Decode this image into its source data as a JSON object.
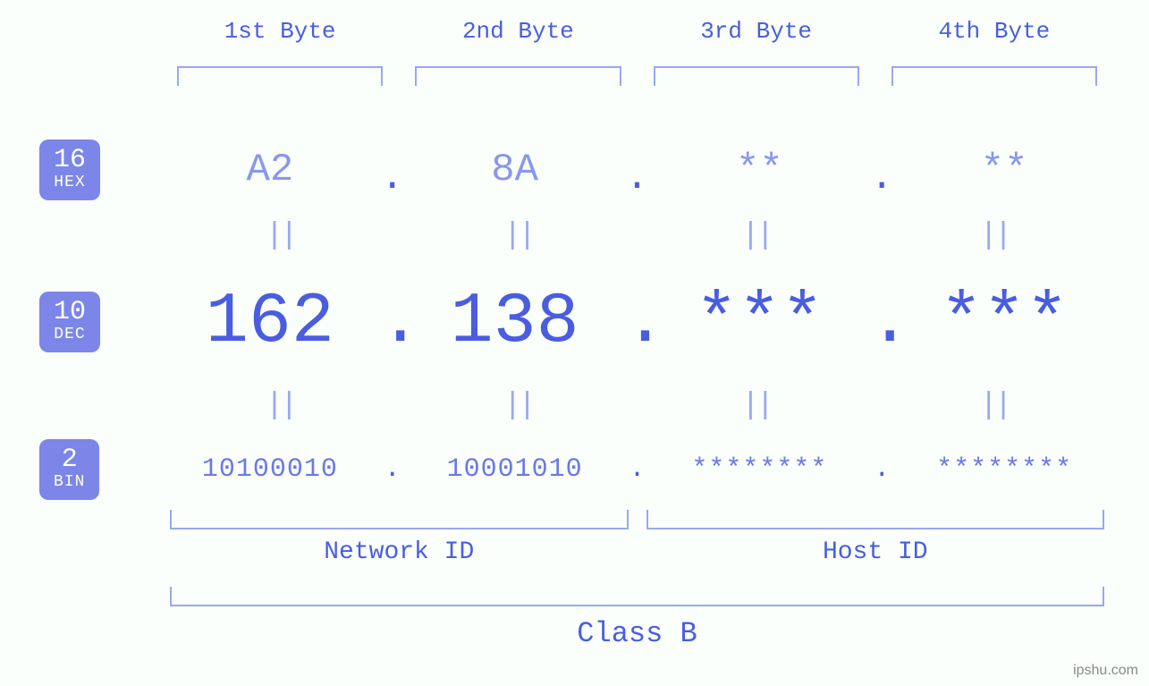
{
  "colors": {
    "background": "#fafffc",
    "primary_text": "#4a5de0",
    "light_text": "#8a97ec",
    "bracket": "#9aa8f0",
    "badge_bg": "#7b86e8",
    "badge_fg": "#ffffff",
    "watermark": "#888888"
  },
  "typography": {
    "font_family": "Courier New, monospace",
    "header_fontsize": 26,
    "hex_fontsize": 44,
    "dec_fontsize": 80,
    "bin_fontsize": 30,
    "eq_fontsize": 34,
    "bottom_label_fontsize": 28,
    "class_label_fontsize": 32,
    "badge_num_fontsize": 30,
    "badge_lbl_fontsize": 18
  },
  "headers": {
    "b1": "1st Byte",
    "b2": "2nd Byte",
    "b3": "3rd Byte",
    "b4": "4th Byte"
  },
  "badges": {
    "hex": {
      "num": "16",
      "lbl": "HEX"
    },
    "dec": {
      "num": "10",
      "lbl": "DEC"
    },
    "bin": {
      "num": "2",
      "lbl": "BIN"
    }
  },
  "hex": {
    "b1": "A2",
    "b2": "8A",
    "b3": "**",
    "b4": "**"
  },
  "dec": {
    "b1": "162",
    "b2": "138",
    "b3": "***",
    "b4": "***"
  },
  "bin": {
    "b1": "10100010",
    "b2": "10001010",
    "b3": "********",
    "b4": "********"
  },
  "separator": ".",
  "equals": "||",
  "bottom": {
    "network": "Network ID",
    "host": "Host ID",
    "class": "Class B"
  },
  "watermark": "ipshu.com"
}
